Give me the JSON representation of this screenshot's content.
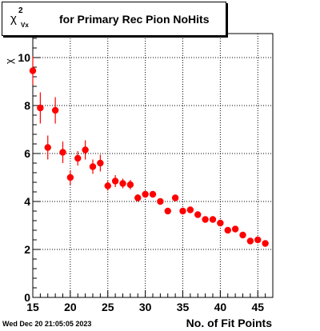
{
  "chart_data": {
    "type": "scatter",
    "title_symbol": "χ",
    "title_sup": "2",
    "title_sub": "Vx",
    "title_text": "for Primary Rec Pion NoHits",
    "xlabel": "No. of Fit Points",
    "ylabel": "χ",
    "xlim": [
      15,
      47
    ],
    "ylim": [
      0,
      11
    ],
    "x_ticks": [
      15,
      20,
      25,
      30,
      35,
      40,
      45
    ],
    "y_ticks": [
      0,
      2,
      4,
      6,
      8,
      10
    ],
    "grid": true,
    "marker_color": "#ff0000",
    "points": [
      {
        "x": 15,
        "y": 9.45,
        "err": 0.6
      },
      {
        "x": 16,
        "y": 7.9,
        "err": 0.65
      },
      {
        "x": 17,
        "y": 6.25,
        "err": 0.5
      },
      {
        "x": 18,
        "y": 7.8,
        "err": 0.55
      },
      {
        "x": 19,
        "y": 6.05,
        "err": 0.45
      },
      {
        "x": 20,
        "y": 5.0,
        "err": 0.3
      },
      {
        "x": 21,
        "y": 5.8,
        "err": 0.3
      },
      {
        "x": 22,
        "y": 6.15,
        "err": 0.4
      },
      {
        "x": 23,
        "y": 5.45,
        "err": 0.3
      },
      {
        "x": 24,
        "y": 5.6,
        "err": 0.35
      },
      {
        "x": 25,
        "y": 4.65,
        "err": 0.2
      },
      {
        "x": 26,
        "y": 4.85,
        "err": 0.25
      },
      {
        "x": 27,
        "y": 4.75,
        "err": 0.2
      },
      {
        "x": 28,
        "y": 4.7,
        "err": 0.2
      },
      {
        "x": 29,
        "y": 4.15,
        "err": 0.15
      },
      {
        "x": 30,
        "y": 4.3,
        "err": 0.15
      },
      {
        "x": 31,
        "y": 4.3,
        "err": 0.1
      },
      {
        "x": 32,
        "y": 4.0,
        "err": 0.1
      },
      {
        "x": 33,
        "y": 3.6,
        "err": 0.1
      },
      {
        "x": 34,
        "y": 4.15,
        "err": 0.1
      },
      {
        "x": 35,
        "y": 3.6,
        "err": 0.1
      },
      {
        "x": 36,
        "y": 3.65,
        "err": 0.1
      },
      {
        "x": 37,
        "y": 3.45,
        "err": 0.1
      },
      {
        "x": 38,
        "y": 3.25,
        "err": 0.1
      },
      {
        "x": 39,
        "y": 3.25,
        "err": 0.1
      },
      {
        "x": 40,
        "y": 3.1,
        "err": 0.1
      },
      {
        "x": 41,
        "y": 2.8,
        "err": 0.1
      },
      {
        "x": 42,
        "y": 2.85,
        "err": 0.1
      },
      {
        "x": 43,
        "y": 2.6,
        "err": 0.1
      },
      {
        "x": 44,
        "y": 2.35,
        "err": 0.1
      },
      {
        "x": 45,
        "y": 2.4,
        "err": 0.1
      },
      {
        "x": 46,
        "y": 2.25,
        "err": 0.1
      }
    ]
  },
  "footer": {
    "datestamp": "Wed Dec 20 21:05:05 2023"
  }
}
